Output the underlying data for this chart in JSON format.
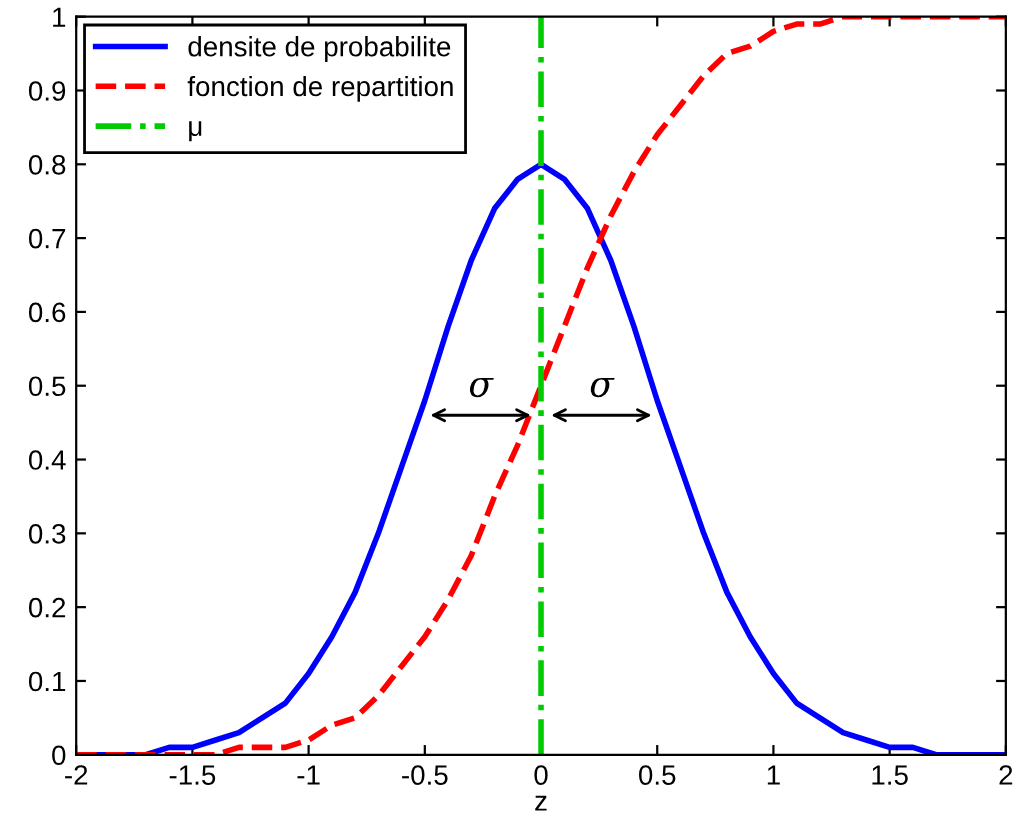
{
  "chart_data": {
    "type": "line",
    "xlabel": "z",
    "x": [
      -2,
      -1.9,
      -1.8,
      -1.7,
      -1.6,
      -1.5,
      -1.4,
      -1.3,
      -1.2,
      -1.1,
      -1,
      -0.9,
      -0.8,
      -0.7,
      -0.6,
      -0.5,
      -0.4,
      -0.3,
      -0.2,
      -0.1,
      0,
      0.1,
      0.2,
      0.3,
      0.4,
      0.5,
      0.6,
      0.7,
      0.8,
      0.9,
      1,
      1.1,
      1.2,
      1.3,
      1.4,
      1.5,
      1.6,
      1.7,
      1.8,
      1.9,
      2
    ],
    "series": [
      {
        "name": "densite de probabilite",
        "color": "#0000ff",
        "line_style": "solid",
        "values": [
          0,
          0,
          0,
          0,
          0.01,
          0.01,
          0.02,
          0.03,
          0.05,
          0.07,
          0.11,
          0.16,
          0.22,
          0.3,
          0.39,
          0.48,
          0.58,
          0.67,
          0.74,
          0.78,
          0.8,
          0.78,
          0.74,
          0.67,
          0.58,
          0.48,
          0.39,
          0.3,
          0.22,
          0.16,
          0.11,
          0.07,
          0.05,
          0.03,
          0.02,
          0.01,
          0.01,
          0,
          0,
          0,
          0
        ]
      },
      {
        "name": "fonction de repartition",
        "color": "#ff0000",
        "line_style": "dashed",
        "values": [
          0,
          0,
          0,
          0,
          0,
          0,
          0,
          0.01,
          0.01,
          0.01,
          0.02,
          0.04,
          0.05,
          0.08,
          0.12,
          0.16,
          0.21,
          0.27,
          0.35,
          0.42,
          0.5,
          0.58,
          0.66,
          0.73,
          0.79,
          0.84,
          0.88,
          0.92,
          0.95,
          0.96,
          0.98,
          0.99,
          0.99,
          1,
          1,
          1,
          1,
          1,
          1,
          1,
          1
        ]
      },
      {
        "name": "μ",
        "color": "#00cc00",
        "line_style": "dashdot",
        "x": [
          0,
          0
        ],
        "values": [
          0,
          1
        ]
      }
    ],
    "annotations": [
      "σ",
      "σ"
    ],
    "xlim": [
      -2,
      2
    ],
    "ylim": [
      0,
      1
    ],
    "xticks": [
      -2,
      -1.5,
      -1,
      -0.5,
      0,
      0.5,
      1,
      1.5,
      2
    ],
    "yticks": [
      0,
      0.1,
      0.2,
      0.3,
      0.4,
      0.5,
      0.6,
      0.7,
      0.8,
      0.9,
      1
    ],
    "legend": "top left",
    "grid": false
  }
}
